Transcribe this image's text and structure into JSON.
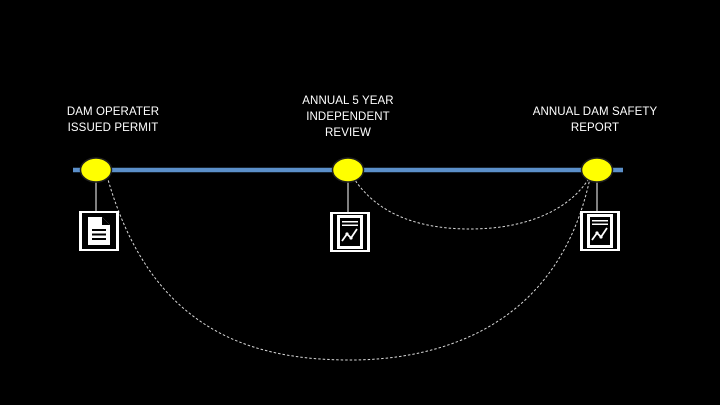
{
  "milestones": [
    {
      "id": "permit",
      "label_lines": [
        "DAM OPERATER",
        "ISSUED PERMIT"
      ],
      "icon": "document-icon"
    },
    {
      "id": "review",
      "label_lines": [
        "ANNUAL 5 YEAR",
        "INDEPENDENT",
        "REVIEW"
      ],
      "icon": "report-chart-icon"
    },
    {
      "id": "safety",
      "label_lines": [
        "ANNUAL DAM SAFETY",
        "REPORT"
      ],
      "icon": "report-chart-icon"
    }
  ],
  "colors": {
    "background": "#000000",
    "timeline": "#5b8fc9",
    "node_fill": "#ffff00",
    "node_stroke": "#1f1f1f",
    "text": "#ffffff",
    "connector": "#ffffff"
  }
}
